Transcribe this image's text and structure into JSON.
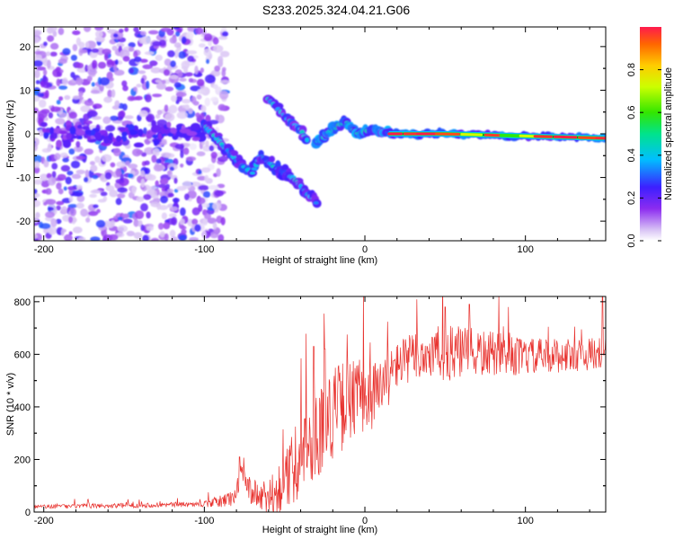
{
  "title": "S233.2025.324.04.21.G06",
  "chart_data": [
    {
      "type": "heatmap",
      "name": "spectrogram",
      "xlabel": "Height of straight line (km)",
      "ylabel": "Frequency (Hz)",
      "xlim": [
        -206,
        150
      ],
      "ylim": [
        -24.5,
        24.5
      ],
      "xticks": [
        -200,
        -100,
        0,
        100
      ],
      "xtick_labels": [
        "-200",
        "-100",
        "0",
        "100"
      ],
      "yticks": [
        -20,
        -10,
        0,
        10,
        20
      ],
      "ytick_labels": [
        "-20",
        "-10",
        "0",
        "10",
        "20"
      ],
      "colorbar": {
        "label": "Normalized spectral amplitude",
        "range": [
          0,
          1
        ],
        "ticks": [
          0.0,
          0.2,
          0.4,
          0.6,
          0.8
        ],
        "tick_labels": [
          "0.0",
          "0.2",
          "0.4",
          "0.6",
          "0.8"
        ]
      },
      "features": {
        "noise_region_km": [
          -206,
          -95
        ],
        "descending_track": [
          [
            -100,
            2
          ],
          [
            -90,
            -2
          ],
          [
            -80,
            -6
          ],
          [
            -70,
            -9
          ],
          [
            -65,
            -5
          ],
          [
            -55,
            -8
          ],
          [
            -45,
            -10
          ],
          [
            -35,
            -14
          ],
          [
            -30,
            -16
          ]
        ],
        "upper_branch": [
          [
            -60,
            8
          ],
          [
            -50,
            4
          ],
          [
            -40,
            1
          ],
          [
            -35,
            -2
          ]
        ],
        "converging_track": [
          [
            -30,
            -2
          ],
          [
            -20,
            1
          ],
          [
            -12,
            3
          ],
          [
            -5,
            0
          ],
          [
            5,
            1
          ],
          [
            15,
            0
          ]
        ],
        "stable_line": [
          [
            15,
            0
          ],
          [
            50,
            0
          ],
          [
            100,
            -0.5
          ],
          [
            150,
            -1
          ]
        ]
      }
    },
    {
      "type": "line",
      "name": "snr",
      "xlabel": "Height of straight line (km)",
      "ylabel": "SNR (10 * v/v)",
      "xlim": [
        -206,
        150
      ],
      "ylim": [
        0,
        820
      ],
      "xticks": [
        -200,
        -100,
        0,
        100
      ],
      "xtick_labels": [
        "-200",
        "-100",
        "0",
        "100"
      ],
      "yticks": [
        0,
        200,
        400,
        600,
        800
      ],
      "ytick_labels": [
        "0",
        "200",
        "400",
        "600",
        "800"
      ],
      "series": [
        {
          "name": "SNR",
          "color": "#e8312d",
          "envelope_points": [
            [
              -206,
              20
            ],
            [
              -180,
              22
            ],
            [
              -150,
              25
            ],
            [
              -120,
              28
            ],
            [
              -100,
              30
            ],
            [
              -90,
              40
            ],
            [
              -80,
              60
            ],
            [
              -78,
              150
            ],
            [
              -70,
              70
            ],
            [
              -60,
              45
            ],
            [
              -50,
              110
            ],
            [
              -40,
              220
            ],
            [
              -30,
              300
            ],
            [
              -20,
              380
            ],
            [
              -10,
              420
            ],
            [
              0,
              440
            ],
            [
              10,
              460
            ],
            [
              20,
              560
            ],
            [
              30,
              590
            ],
            [
              40,
              600
            ],
            [
              60,
              605
            ],
            [
              80,
              600
            ],
            [
              100,
              590
            ],
            [
              120,
              595
            ],
            [
              140,
              600
            ],
            [
              150,
              610
            ]
          ],
          "noise_amplitude": [
            [
              -206,
              8
            ],
            [
              -100,
              10
            ],
            [
              -80,
              40
            ],
            [
              -60,
              70
            ],
            [
              -40,
              160
            ],
            [
              -20,
              180
            ],
            [
              0,
              150
            ],
            [
              20,
              90
            ],
            [
              50,
              110
            ],
            [
              100,
              70
            ],
            [
              150,
              60
            ]
          ],
          "peaks": [
            [
              -78,
              210
            ],
            [
              -32,
              630
            ],
            [
              -25,
              620
            ],
            [
              50,
              780
            ],
            [
              65,
              790
            ],
            [
              148,
              820
            ]
          ]
        }
      ]
    }
  ]
}
